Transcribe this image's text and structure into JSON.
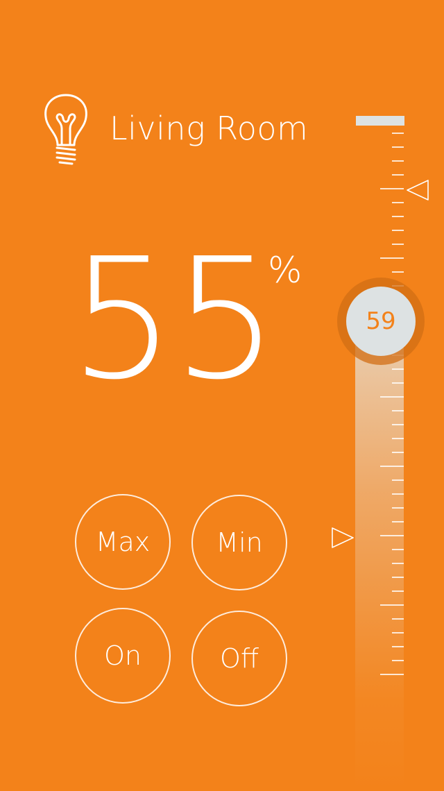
{
  "room": {
    "title": "Living Room",
    "icon": "light-bulb-icon"
  },
  "level": {
    "value": "55",
    "unit": "%"
  },
  "buttons": {
    "max": "Max",
    "min": "Min",
    "on": "On",
    "off": "Off"
  },
  "slider": {
    "handle_value": "59",
    "markers": [
      "triangle-left-icon",
      "triangle-right-icon"
    ]
  },
  "colors": {
    "background": "#F3821A",
    "text": "#FFFFFF",
    "handle": "#DDE2E3",
    "handle_ring": "#D26E14"
  }
}
